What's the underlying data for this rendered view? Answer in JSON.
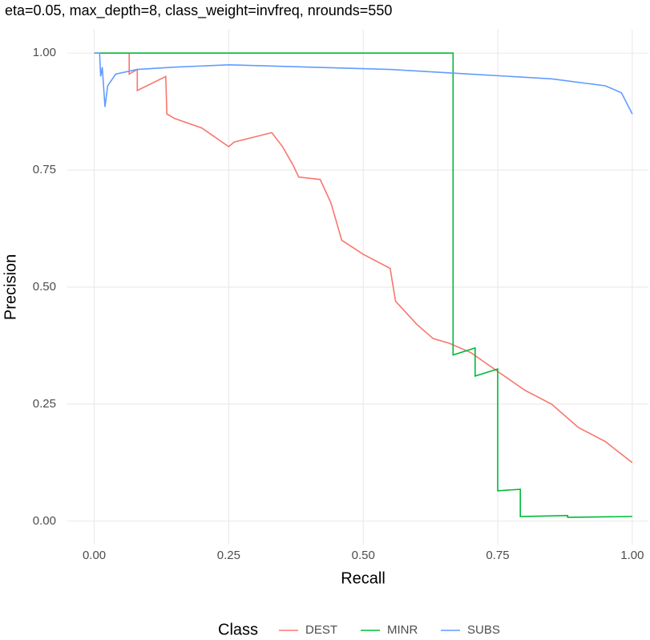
{
  "chart_data": {
    "type": "line",
    "title": "eta=0.05, max_depth=8, class_weight=invfreq, nrounds=550",
    "x_label": "Recall",
    "y_label": "Precision",
    "legend_title": "Class",
    "legend": "bottom",
    "grid": true,
    "xlim": [
      -0.05,
      1.03
    ],
    "ylim": [
      -0.05,
      1.05
    ],
    "xticks": [
      {
        "value": 0,
        "label": "0.00"
      },
      {
        "value": 0.25,
        "label": "0.25"
      },
      {
        "value": 0.5,
        "label": "0.50"
      },
      {
        "value": 0.75,
        "label": "0.75"
      },
      {
        "value": 1,
        "label": "1.00"
      }
    ],
    "yticks": [
      {
        "value": 0,
        "label": "0.00"
      },
      {
        "value": 0.25,
        "label": "0.25"
      },
      {
        "value": 0.5,
        "label": "0.50"
      },
      {
        "value": 0.75,
        "label": "0.75"
      },
      {
        "value": 1,
        "label": "1.00"
      }
    ],
    "series": [
      {
        "name": "DEST",
        "color": "#F8766D",
        "x": [
          0.065,
          0.065,
          0.08,
          0.08,
          0.133,
          0.135,
          0.15,
          0.2,
          0.25,
          0.26,
          0.33,
          0.35,
          0.37,
          0.38,
          0.42,
          0.44,
          0.46,
          0.5,
          0.55,
          0.56,
          0.6,
          0.63,
          0.66,
          0.7,
          0.75,
          0.8,
          0.85,
          0.9,
          0.95,
          1.0
        ],
        "values": [
          1.0,
          0.955,
          0.965,
          0.92,
          0.95,
          0.87,
          0.86,
          0.84,
          0.8,
          0.81,
          0.83,
          0.8,
          0.76,
          0.735,
          0.73,
          0.68,
          0.6,
          0.57,
          0.54,
          0.47,
          0.42,
          0.39,
          0.38,
          0.36,
          0.32,
          0.28,
          0.25,
          0.2,
          0.17,
          0.125
        ]
      },
      {
        "name": "MINR",
        "color": "#00BA38",
        "x": [
          0,
          0.667,
          0.667,
          0.708,
          0.708,
          0.75,
          0.75,
          0.792,
          0.792,
          0.88,
          0.88,
          1.0
        ],
        "values": [
          1.0,
          1.0,
          0.355,
          0.37,
          0.31,
          0.325,
          0.065,
          0.068,
          0.01,
          0.012,
          0.008,
          0.01
        ]
      },
      {
        "name": "SUBS",
        "color": "#619CFF",
        "x": [
          0,
          0.01,
          0.012,
          0.015,
          0.02,
          0.025,
          0.04,
          0.08,
          0.15,
          0.25,
          0.4,
          0.55,
          0.7,
          0.85,
          0.95,
          0.98,
          1.0
        ],
        "values": [
          1.0,
          1.0,
          0.95,
          0.97,
          0.885,
          0.93,
          0.955,
          0.965,
          0.97,
          0.975,
          0.97,
          0.965,
          0.955,
          0.945,
          0.93,
          0.915,
          0.87
        ]
      }
    ]
  }
}
